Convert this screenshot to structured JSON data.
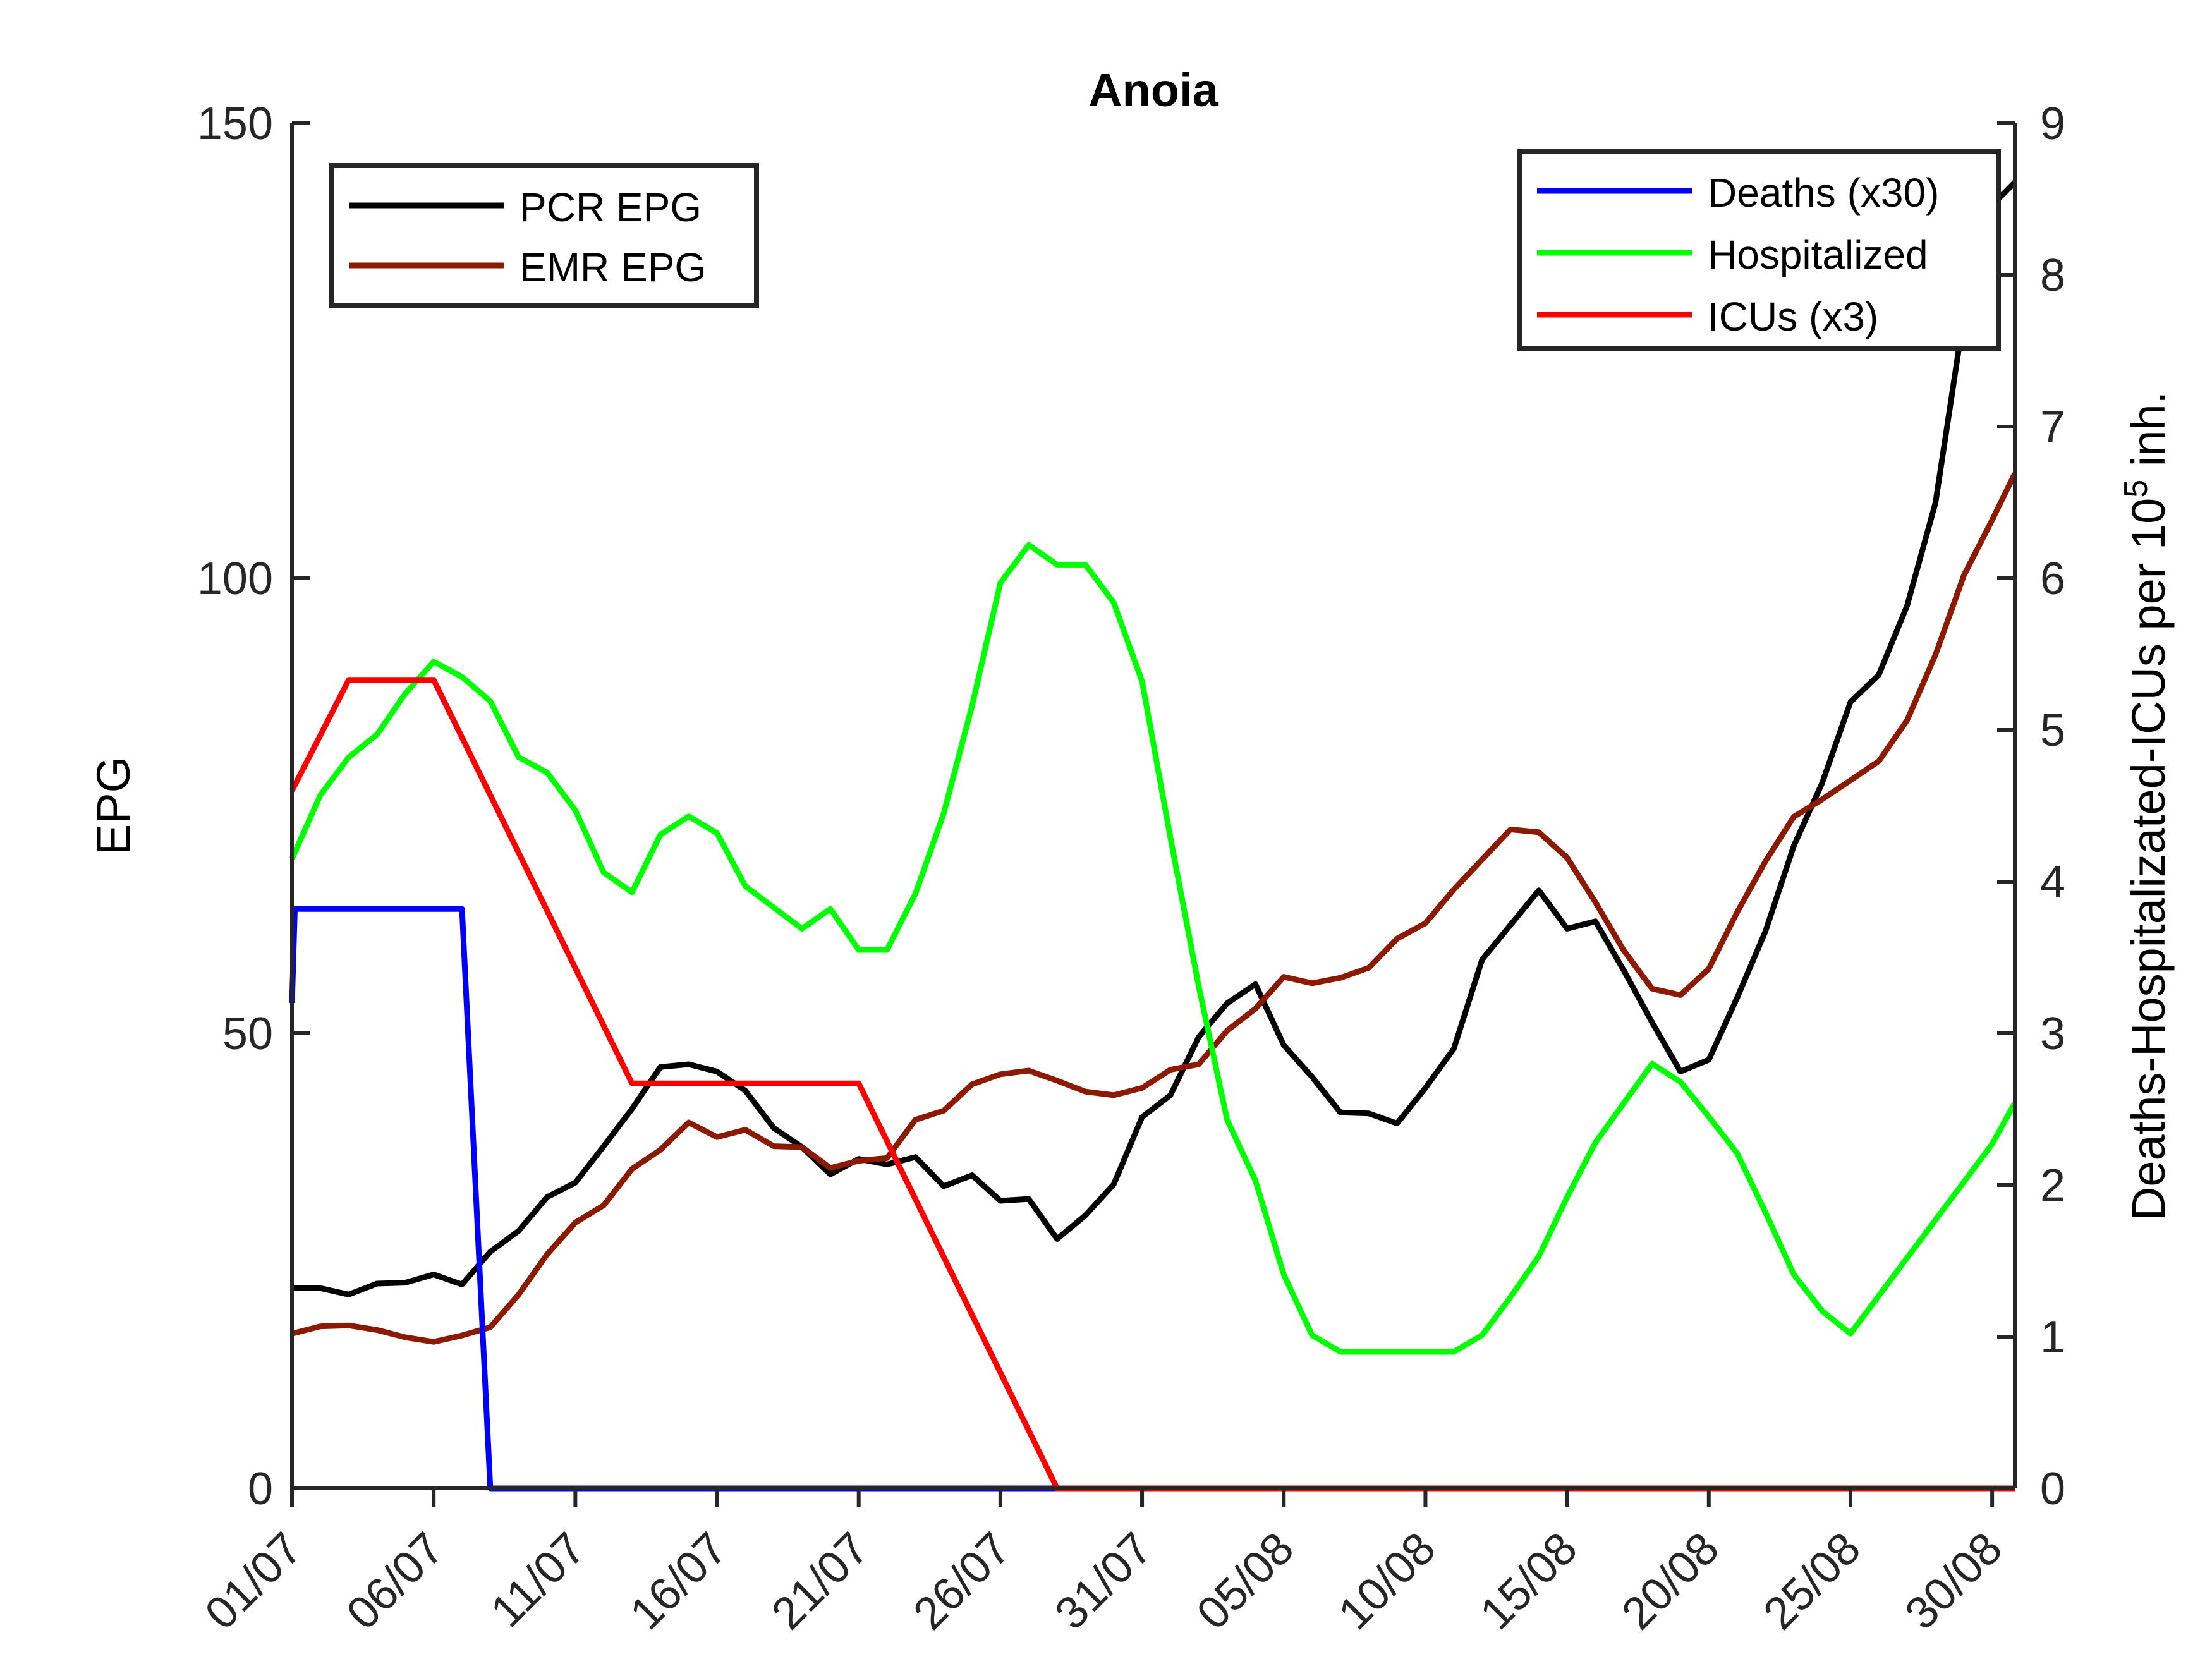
{
  "chart_data": {
    "type": "line",
    "title": "Anoia",
    "x_tick_labels": [
      "01/07",
      "06/07",
      "11/07",
      "16/07",
      "21/07",
      "26/07",
      "31/07",
      "05/08",
      "10/08",
      "15/08",
      "20/08",
      "25/08",
      "30/08"
    ],
    "x_tick_days": [
      0,
      5,
      10,
      15,
      20,
      25,
      30,
      35,
      40,
      45,
      50,
      55,
      60
    ],
    "x_range_days": [
      0,
      60.8
    ],
    "left_axis": {
      "label": "EPG",
      "ylim": [
        0,
        150
      ],
      "ticks": [
        0,
        50,
        100,
        150
      ]
    },
    "right_axis": {
      "label_main": "Deaths-Hospitalizated-ICUs per 10",
      "label_sup": "5",
      "label_end": " inh.",
      "ylim": [
        0,
        9
      ],
      "ticks": [
        0,
        1,
        2,
        3,
        4,
        5,
        6,
        7,
        8,
        9
      ]
    },
    "legend_left": {
      "position": "top-left",
      "entries": [
        "PCR EPG",
        "EMR EPG"
      ]
    },
    "legend_right": {
      "position": "top-right",
      "entries": [
        "Deaths (x30)",
        "Hospitalized",
        "ICUs (x3)"
      ]
    },
    "series": [
      {
        "name": "PCR EPG",
        "axis": "left",
        "color": "#000000",
        "x": [
          0,
          1,
          2,
          3,
          4,
          5,
          6,
          7,
          8,
          9,
          10,
          11,
          12,
          13,
          14,
          15,
          16,
          17,
          18,
          19,
          20,
          21,
          22,
          23,
          24,
          25,
          26,
          27,
          28,
          29,
          30,
          31,
          32,
          33,
          34,
          35,
          36,
          37,
          38,
          39,
          40,
          41,
          42,
          43,
          44,
          45,
          46,
          47,
          48,
          49,
          50,
          51,
          52,
          53,
          54,
          55,
          56,
          57,
          58,
          59,
          60,
          60.8
        ],
        "values": [
          22,
          22,
          21.3,
          22.5,
          22.6,
          23.5,
          22.4,
          26,
          28.3,
          32,
          33.6,
          37.6,
          41.7,
          46.3,
          46.6,
          45.8,
          43.7,
          39.6,
          37.5,
          34.5,
          36.2,
          35.6,
          36.4,
          33.2,
          34.4,
          31.6,
          31.8,
          27.4,
          30,
          33.4,
          40.8,
          43.2,
          49.6,
          53.3,
          55.4,
          48.7,
          45.2,
          41.3,
          41.2,
          40.1,
          44,
          48.3,
          58.1,
          61.9,
          65.7,
          61.5,
          62.3,
          56.9,
          51.2,
          45.8,
          47.1,
          53.9,
          61.2,
          70.6,
          77.5,
          86.4,
          89.4,
          97,
          108.3,
          128.8,
          141,
          143.5
        ]
      },
      {
        "name": "EMR EPG",
        "axis": "left",
        "color": "#8b1a00",
        "x": [
          0,
          1,
          2,
          3,
          4,
          5,
          6,
          7,
          8,
          9,
          10,
          11,
          12,
          13,
          14,
          15,
          16,
          17,
          18,
          19,
          20,
          21,
          22,
          23,
          24,
          25,
          26,
          27,
          28,
          29,
          30,
          31,
          32,
          33,
          34,
          35,
          36,
          37,
          38,
          39,
          40,
          41,
          42,
          43,
          44,
          45,
          46,
          47,
          48,
          49,
          50,
          51,
          52,
          53,
          54,
          55,
          56,
          57,
          58,
          59,
          60,
          60.8
        ],
        "values": [
          17,
          17.8,
          17.9,
          17.4,
          16.6,
          16.1,
          16.8,
          17.7,
          21.3,
          25.7,
          29.2,
          31.1,
          35.1,
          37.2,
          40.2,
          38.6,
          39.4,
          37.6,
          37.5,
          35.2,
          36,
          36.3,
          40.5,
          41.5,
          44.4,
          45.5,
          45.9,
          44.8,
          43.6,
          43.2,
          44,
          46,
          46.6,
          50.3,
          52.7,
          56.2,
          55.5,
          56.1,
          57.2,
          60.4,
          62.1,
          65.8,
          69.1,
          72.4,
          72.1,
          69.3,
          64.4,
          59.1,
          54.9,
          54.2,
          57.1,
          63.3,
          68.9,
          73.8,
          75.7,
          77.8,
          79.9,
          84.4,
          91.6,
          100.3,
          106.4,
          111.5
        ]
      },
      {
        "name": "Deaths (x30)",
        "axis": "right",
        "color": "#0000ff",
        "x": [
          0,
          0.1,
          6,
          7,
          60.8
        ],
        "values": [
          3.2,
          3.82,
          3.82,
          0,
          0
        ]
      },
      {
        "name": "Hospitalized",
        "axis": "right",
        "color": "#00ff00",
        "x": [
          0,
          1,
          2,
          3,
          4,
          5,
          6,
          7,
          8,
          9,
          10,
          11,
          12,
          13,
          14,
          15,
          16,
          17,
          18,
          19,
          20,
          21,
          22,
          23,
          24,
          25,
          26,
          27,
          28,
          29,
          30,
          31,
          32,
          33,
          34,
          35,
          36,
          37,
          38,
          39,
          40,
          41,
          42,
          43,
          44,
          45,
          46,
          47,
          48,
          49,
          50,
          51,
          52,
          53,
          54,
          55,
          56,
          57,
          58,
          59,
          60,
          60.8
        ],
        "values": [
          4.15,
          4.57,
          4.82,
          4.97,
          5.24,
          5.45,
          5.35,
          5.19,
          4.82,
          4.72,
          4.47,
          4.06,
          3.93,
          4.31,
          4.43,
          4.32,
          3.97,
          3.83,
          3.69,
          3.82,
          3.55,
          3.55,
          3.92,
          4.45,
          5.16,
          5.97,
          6.22,
          6.09,
          6.09,
          5.84,
          5.32,
          4.29,
          3.31,
          2.43,
          2.03,
          1.41,
          1.01,
          0.9,
          0.9,
          0.9,
          0.9,
          0.9,
          1.01,
          1.26,
          1.53,
          1.92,
          2.28,
          2.54,
          2.8,
          2.68,
          2.45,
          2.21,
          1.82,
          1.41,
          1.17,
          1.02,
          1.27,
          1.52,
          1.77,
          2.02,
          2.27,
          2.54
        ]
      },
      {
        "name": "ICUs (x3)",
        "axis": "right",
        "color": "#ff0000",
        "x": [
          0,
          2,
          5,
          12,
          20,
          27,
          60.8
        ],
        "values": [
          4.6,
          5.33,
          5.33,
          2.67,
          2.67,
          0,
          0
        ]
      }
    ]
  }
}
